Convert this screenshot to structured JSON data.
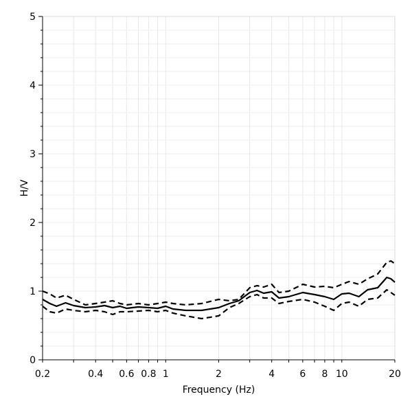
{
  "chart_data": {
    "type": "line",
    "title": "",
    "xlabel": "Frequency (Hz)",
    "ylabel": "H/V",
    "xscale": "log",
    "xlim": [
      0.2,
      20
    ],
    "ylim": [
      0,
      5
    ],
    "grid": true,
    "x_ticks": [
      {
        "value": 0.2,
        "label": "0.2"
      },
      {
        "value": 0.4,
        "label": "0.4"
      },
      {
        "value": 0.6,
        "label": "0.6"
      },
      {
        "value": 0.8,
        "label": "0.8"
      },
      {
        "value": 1,
        "label": "1"
      },
      {
        "value": 2,
        "label": "2"
      },
      {
        "value": 4,
        "label": "4"
      },
      {
        "value": 6,
        "label": "6"
      },
      {
        "value": 8,
        "label": "8"
      },
      {
        "value": 10,
        "label": "10"
      },
      {
        "value": 20,
        "label": "20"
      }
    ],
    "y_ticks": [
      {
        "value": 0,
        "label": "0"
      },
      {
        "value": 1,
        "label": "1"
      },
      {
        "value": 2,
        "label": "2"
      },
      {
        "value": 3,
        "label": "3"
      },
      {
        "value": 4,
        "label": "4"
      },
      {
        "value": 5,
        "label": "5"
      }
    ],
    "series": [
      {
        "style": "solid",
        "x": [
          0.2,
          0.22,
          0.24,
          0.27,
          0.3,
          0.35,
          0.4,
          0.45,
          0.5,
          0.55,
          0.6,
          0.7,
          0.8,
          0.9,
          1.0,
          1.1,
          1.3,
          1.6,
          2.0,
          2.3,
          2.6,
          3.0,
          3.3,
          3.6,
          4.0,
          4.4,
          5.0,
          6.0,
          7.0,
          8.0,
          9.0,
          10.0,
          11.0,
          12.5,
          14.0,
          16.0,
          18.0,
          19.0,
          20.0
        ],
        "y": [
          0.88,
          0.82,
          0.78,
          0.83,
          0.79,
          0.76,
          0.77,
          0.79,
          0.76,
          0.78,
          0.75,
          0.77,
          0.76,
          0.75,
          0.78,
          0.74,
          0.72,
          0.72,
          0.76,
          0.82,
          0.86,
          0.98,
          1.01,
          0.97,
          0.99,
          0.9,
          0.92,
          0.98,
          0.95,
          0.92,
          0.88,
          0.96,
          0.97,
          0.92,
          1.02,
          1.05,
          1.2,
          1.18,
          1.13
        ]
      },
      {
        "style": "dashed",
        "x": [
          0.2,
          0.22,
          0.24,
          0.27,
          0.3,
          0.35,
          0.4,
          0.45,
          0.5,
          0.55,
          0.6,
          0.7,
          0.8,
          0.9,
          1.0,
          1.1,
          1.3,
          1.6,
          2.0,
          2.3,
          2.6,
          3.0,
          3.3,
          3.6,
          4.0,
          4.4,
          5.0,
          6.0,
          7.0,
          8.0,
          9.0,
          10.0,
          11.0,
          12.5,
          14.0,
          16.0,
          18.0,
          19.0,
          20.0
        ],
        "y": [
          1.0,
          0.96,
          0.9,
          0.94,
          0.88,
          0.8,
          0.82,
          0.84,
          0.86,
          0.82,
          0.8,
          0.82,
          0.8,
          0.82,
          0.84,
          0.82,
          0.8,
          0.82,
          0.88,
          0.86,
          0.88,
          1.05,
          1.08,
          1.06,
          1.1,
          0.98,
          1.0,
          1.1,
          1.06,
          1.07,
          1.05,
          1.1,
          1.14,
          1.1,
          1.18,
          1.25,
          1.42,
          1.44,
          1.4
        ]
      },
      {
        "style": "dashed",
        "x": [
          0.2,
          0.22,
          0.24,
          0.27,
          0.3,
          0.35,
          0.4,
          0.45,
          0.5,
          0.55,
          0.6,
          0.7,
          0.8,
          0.9,
          1.0,
          1.1,
          1.3,
          1.6,
          2.0,
          2.3,
          2.6,
          3.0,
          3.3,
          3.6,
          4.0,
          4.4,
          5.0,
          6.0,
          7.0,
          8.0,
          9.0,
          10.0,
          11.0,
          12.5,
          14.0,
          16.0,
          18.0,
          19.0,
          20.0
        ],
        "y": [
          0.78,
          0.7,
          0.68,
          0.74,
          0.72,
          0.7,
          0.72,
          0.7,
          0.66,
          0.7,
          0.7,
          0.71,
          0.72,
          0.7,
          0.72,
          0.68,
          0.64,
          0.6,
          0.64,
          0.76,
          0.82,
          0.92,
          0.95,
          0.9,
          0.9,
          0.82,
          0.85,
          0.88,
          0.84,
          0.78,
          0.72,
          0.82,
          0.84,
          0.78,
          0.88,
          0.9,
          1.02,
          0.98,
          0.94
        ]
      }
    ]
  }
}
